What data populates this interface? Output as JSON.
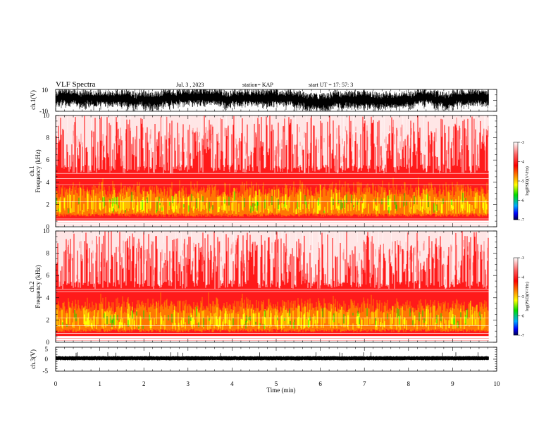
{
  "header": {
    "title": "VLF Spectra",
    "date": "Jul. 3 , 2023",
    "station": "station= KAP",
    "start": "start UT =  17: 57: 3"
  },
  "colors": {
    "white": "#ffffff",
    "red": "#ff1a1a",
    "orange": "#ff8800",
    "yellow": "#ffff00",
    "green": "#00dd00",
    "blue": "#0000ff",
    "navy": "#000050"
  },
  "chart_data": [
    {
      "type": "line",
      "id": "ch1-waveform",
      "ylabel": "ch.1(V)",
      "ylim": [
        -10,
        10
      ],
      "yticks": [
        "10",
        "-10"
      ],
      "xlim": [
        0,
        10
      ]
    },
    {
      "type": "heatmap",
      "id": "ch1-spectrogram",
      "ylabel_top": "ch.1",
      "ylabel": "Frequency (kHz)",
      "ylim": [
        0,
        10
      ],
      "yticks": [
        "0",
        "2",
        "4",
        "6",
        "8",
        "10"
      ],
      "xlim": [
        0,
        10
      ],
      "data_end_min": 9.82,
      "colorbar": {
        "label": "log(PSD)(V²/Hz)",
        "range": [
          -7,
          -3
        ],
        "ticks": [
          "-3",
          "-4",
          "-5",
          "-6",
          "-7"
        ]
      }
    },
    {
      "type": "heatmap",
      "id": "ch2-spectrogram",
      "ylabel_top": "ch.2",
      "ylabel": "Frequency (kHz)",
      "ylim": [
        0,
        10
      ],
      "yticks": [
        "0",
        "2",
        "4",
        "6",
        "8",
        "10"
      ],
      "xlim": [
        0,
        10
      ],
      "data_end_min": 9.82,
      "colorbar": {
        "label": "log(PSD)(V²/Hz)",
        "range": [
          -7,
          -3
        ],
        "ticks": [
          "-3",
          "-4",
          "-5",
          "-6",
          "-7"
        ]
      }
    },
    {
      "type": "line",
      "id": "ch3-waveform",
      "ylabel": "ch.3(V)",
      "ylim": [
        -5,
        5
      ],
      "yticks": [
        "5",
        "0",
        "-5"
      ],
      "xlim": [
        0,
        10
      ],
      "xlabel": "Time (min)",
      "xticks": [
        "0",
        "1",
        "2",
        "3",
        "4",
        "5",
        "6",
        "7",
        "8",
        "9",
        "10"
      ]
    }
  ]
}
